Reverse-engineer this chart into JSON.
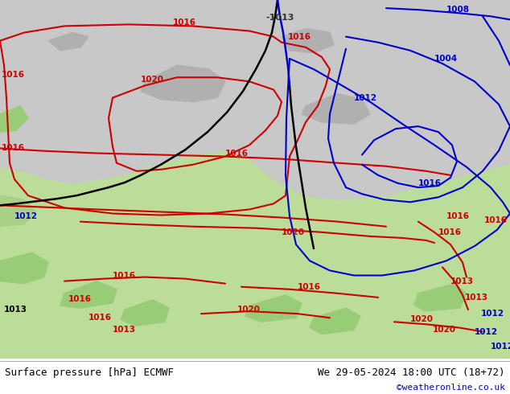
{
  "title_left": "Surface pressure [hPa] ECMWF",
  "title_right": "We 29-05-2024 18:00 UTC (18+72)",
  "title_right2": "©weatheronline.co.uk",
  "figsize": [
    6.34,
    4.9
  ],
  "dpi": 100,
  "red": "#cc0000",
  "blue": "#0000cc",
  "black": "#000000",
  "gray_bg": "#c8c8c8",
  "green_light": "#bbdd99",
  "green_land": "#99cc77"
}
